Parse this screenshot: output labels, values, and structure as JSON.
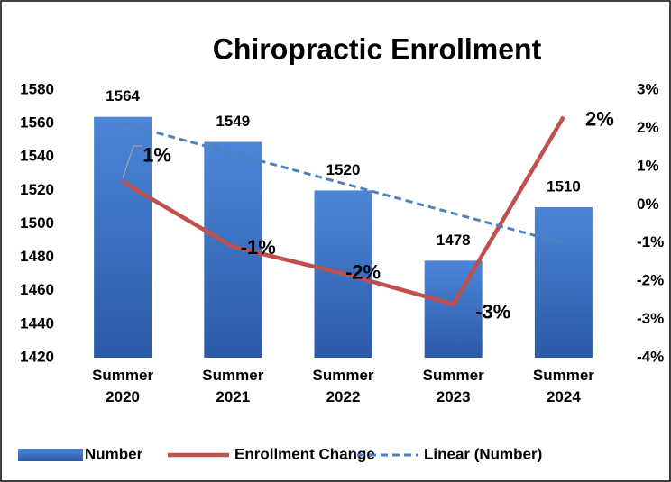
{
  "chart_data": {
    "type": "bar",
    "title": "Chiropractic Enrollment",
    "categories": [
      "Summer 2020",
      "Summer 2021",
      "Summer 2022",
      "Summer 2023",
      "Summer 2024"
    ],
    "series": [
      {
        "name": "Number",
        "color": "#3a6fc4",
        "values": [
          1564,
          1549,
          1520,
          1478,
          1510
        ]
      },
      {
        "name": "Enrollment Change",
        "type": "line",
        "axis": "y2",
        "color": "#c0504d",
        "values": [
          0.6,
          -1.1,
          -1.8,
          -2.6,
          2.3
        ],
        "value_labels": [
          "1%",
          "-1%",
          "-2%",
          "-3%",
          "2%"
        ]
      },
      {
        "name": "Linear (Number)",
        "type": "line",
        "dashed": true,
        "color": "#4f81bd",
        "values": [
          1560.0,
          1542.1,
          1524.2,
          1506.3,
          1488.4
        ]
      }
    ],
    "ylim": [
      1420,
      1580
    ],
    "yticks": [
      1420,
      1440,
      1460,
      1480,
      1500,
      1520,
      1540,
      1560,
      1580
    ],
    "y2lim": [
      -4,
      3
    ],
    "y2ticks": [
      {
        "value": -4,
        "label": "-4%"
      },
      {
        "value": -3,
        "label": "-3%"
      },
      {
        "value": -2,
        "label": "-2%"
      },
      {
        "value": -1,
        "label": "-1%"
      },
      {
        "value": 0,
        "label": "0%"
      },
      {
        "value": 1,
        "label": "1%"
      },
      {
        "value": 2,
        "label": "2%"
      },
      {
        "value": 3,
        "label": "3%"
      }
    ],
    "grid": false,
    "legend": "bottom"
  }
}
